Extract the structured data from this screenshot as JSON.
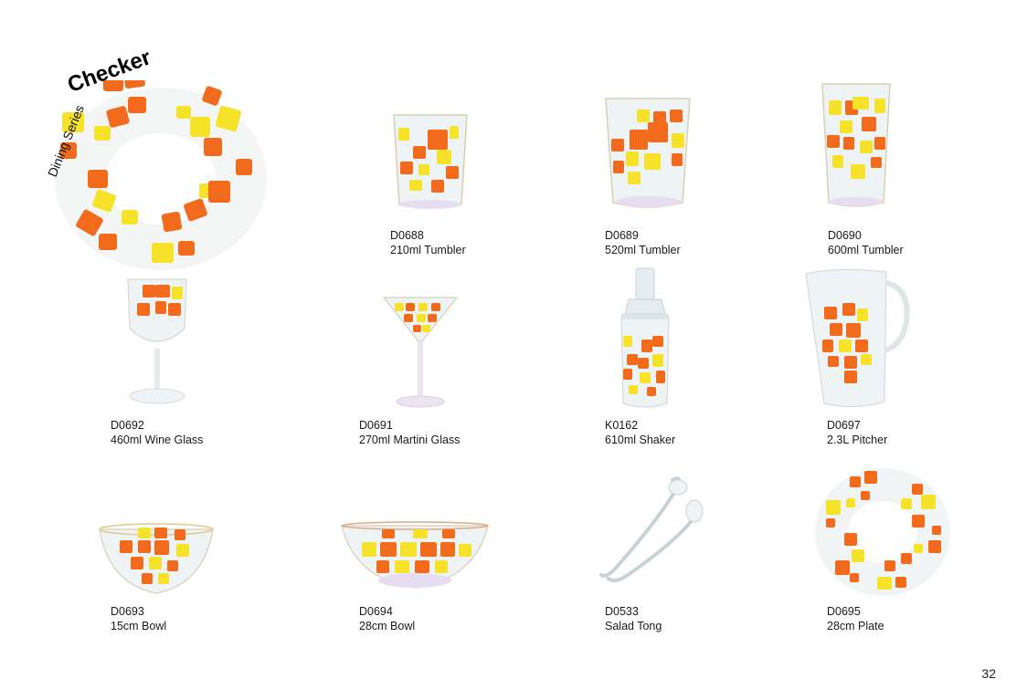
{
  "header": {
    "series_label": "Dining Series",
    "brand": "Checker"
  },
  "colors": {
    "orange": "#f26a1b",
    "yellow": "#f7e22a",
    "glass_rim": "#d9c9a4",
    "glass": "#cfe0e6"
  },
  "products": [
    {
      "code": "D0688",
      "name": "210ml Tumbler",
      "icon": "tumbler-icon"
    },
    {
      "code": "D0689",
      "name": "520ml Tumbler",
      "icon": "tumbler-icon"
    },
    {
      "code": "D0690",
      "name": "600ml Tumbler",
      "icon": "tall-tumbler-icon"
    },
    {
      "code": "D0692",
      "name": "460ml Wine Glass",
      "icon": "wine-glass-icon"
    },
    {
      "code": "D0691",
      "name": "270ml Martini Glass",
      "icon": "martini-glass-icon"
    },
    {
      "code": "K0162",
      "name": "610ml Shaker",
      "icon": "shaker-icon"
    },
    {
      "code": "D0697",
      "name": "2.3L Pitcher",
      "icon": "pitcher-icon"
    },
    {
      "code": "D0693",
      "name": "15cm Bowl",
      "icon": "bowl-icon"
    },
    {
      "code": "D0694",
      "name": "28cm Bowl",
      "icon": "bowl-icon"
    },
    {
      "code": "D0533",
      "name": "Salad Tong",
      "icon": "tong-icon"
    },
    {
      "code": "D0695",
      "name": "28cm Plate",
      "icon": "plate-icon"
    }
  ],
  "page_number": "32"
}
